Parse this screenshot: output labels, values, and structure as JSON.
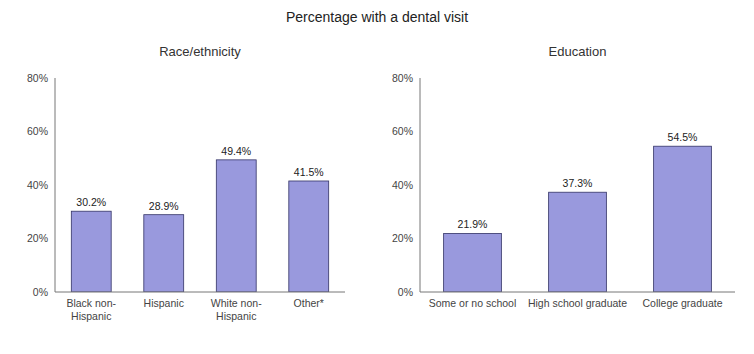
{
  "title": "Percentage with a dental visit",
  "chart_data": [
    {
      "type": "bar",
      "subtitle": "Race/ethnicity",
      "categories": [
        "Black non-\nHispanic",
        "Hispanic",
        "White non-\nHispanic",
        "Other*"
      ],
      "values": [
        30.2,
        28.9,
        49.4,
        41.5
      ],
      "value_labels": [
        "30.2%",
        "28.9%",
        "49.4%",
        "41.5%"
      ],
      "data_labels": true,
      "color": "#9999dd",
      "ylim": [
        0,
        80
      ],
      "yticks": [
        {
          "value": 0,
          "label": "0%"
        },
        {
          "value": 20,
          "label": "20%"
        },
        {
          "value": 40,
          "label": "40%"
        },
        {
          "value": 60,
          "label": "60%"
        },
        {
          "value": 80,
          "label": "80%"
        }
      ],
      "grid": false
    },
    {
      "type": "bar",
      "subtitle": "Education",
      "categories": [
        "Some or no school",
        "High school graduate",
        "College graduate"
      ],
      "values": [
        21.9,
        37.3,
        54.5
      ],
      "value_labels": [
        "21.9%",
        "37.3%",
        "54.5%"
      ],
      "data_labels": true,
      "color": "#9999dd",
      "ylim": [
        0,
        80
      ],
      "yticks": [
        {
          "value": 0,
          "label": "0%"
        },
        {
          "value": 20,
          "label": "20%"
        },
        {
          "value": 40,
          "label": "40%"
        },
        {
          "value": 60,
          "label": "60%"
        },
        {
          "value": 80,
          "label": "80%"
        }
      ],
      "grid": false
    }
  ]
}
